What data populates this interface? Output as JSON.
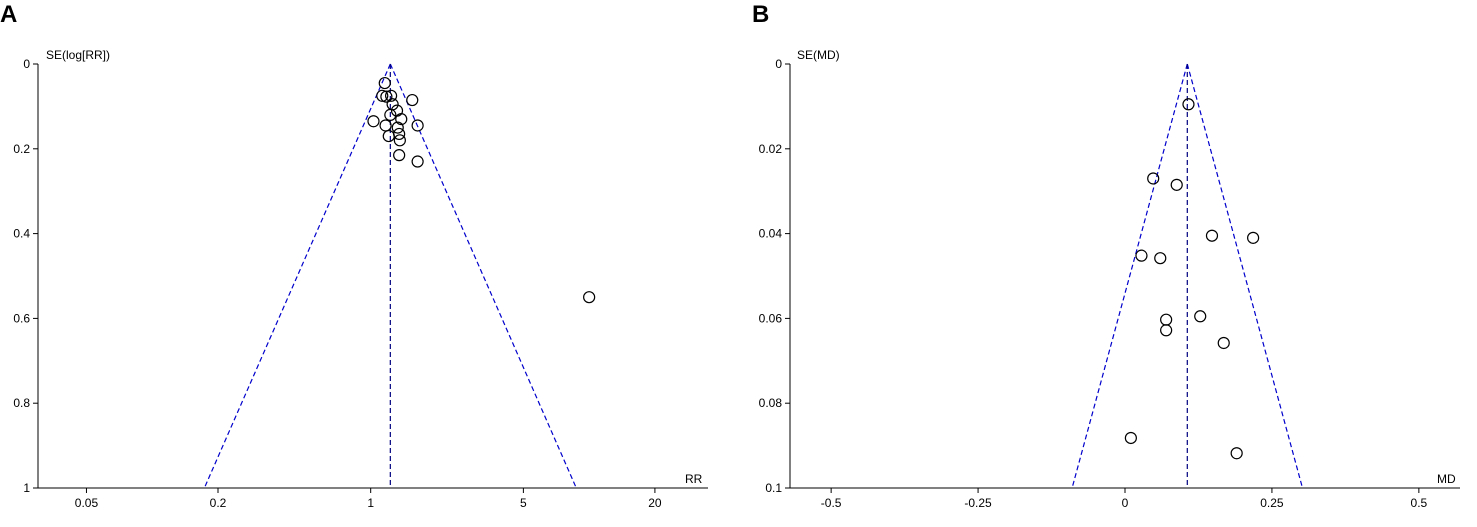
{
  "chart_data": [
    {
      "panel": "A",
      "type": "scatter",
      "ylabel": "SE(log[RR])",
      "xlabel": "RR",
      "x_scale": "log",
      "xlim": [
        0.03,
        35
      ],
      "ylim": [
        0,
        1
      ],
      "y_inverted": true,
      "xticks": [
        {
          "value": 0.05,
          "label": "0.05"
        },
        {
          "value": 0.2,
          "label": "0.2"
        },
        {
          "value": 1,
          "label": "1"
        },
        {
          "value": 5,
          "label": "5"
        },
        {
          "value": 20,
          "label": "20"
        }
      ],
      "yticks": [
        {
          "value": 0,
          "label": "0"
        },
        {
          "value": 0.2,
          "label": "0.2"
        },
        {
          "value": 0.4,
          "label": "0.4"
        },
        {
          "value": 0.6,
          "label": "0.6"
        },
        {
          "value": 0.8,
          "label": "0.8"
        },
        {
          "value": 1,
          "label": "1"
        }
      ],
      "pooled_estimate": 1.23,
      "funnel": "95% pseudo-confidence limits (dashed)",
      "points": [
        {
          "x": 1.16,
          "y": 0.045
        },
        {
          "x": 1.13,
          "y": 0.075
        },
        {
          "x": 1.18,
          "y": 0.077
        },
        {
          "x": 1.24,
          "y": 0.075
        },
        {
          "x": 1.55,
          "y": 0.085
        },
        {
          "x": 1.26,
          "y": 0.095
        },
        {
          "x": 1.32,
          "y": 0.11
        },
        {
          "x": 1.23,
          "y": 0.12
        },
        {
          "x": 1.38,
          "y": 0.13
        },
        {
          "x": 1.03,
          "y": 0.135
        },
        {
          "x": 1.17,
          "y": 0.145
        },
        {
          "x": 1.33,
          "y": 0.15
        },
        {
          "x": 1.64,
          "y": 0.145
        },
        {
          "x": 1.35,
          "y": 0.165
        },
        {
          "x": 1.21,
          "y": 0.17
        },
        {
          "x": 1.36,
          "y": 0.18
        },
        {
          "x": 1.35,
          "y": 0.215
        },
        {
          "x": 1.64,
          "y": 0.23
        },
        {
          "x": 10.0,
          "y": 0.55
        }
      ]
    },
    {
      "panel": "B",
      "type": "scatter",
      "ylabel": "SE(MD)",
      "xlabel": "MD",
      "x_scale": "linear",
      "xlim": [
        -0.57,
        0.57
      ],
      "ylim": [
        0,
        0.1
      ],
      "y_inverted": true,
      "xticks": [
        {
          "value": -0.5,
          "label": "-0.5"
        },
        {
          "value": -0.25,
          "label": "-0.25"
        },
        {
          "value": 0,
          "label": "0"
        },
        {
          "value": 0.25,
          "label": "0.25"
        },
        {
          "value": 0.5,
          "label": "0.5"
        }
      ],
      "yticks": [
        {
          "value": 0,
          "label": "0"
        },
        {
          "value": 0.02,
          "label": "0.02"
        },
        {
          "value": 0.04,
          "label": "0.04"
        },
        {
          "value": 0.06,
          "label": "0.06"
        },
        {
          "value": 0.08,
          "label": "0.08"
        },
        {
          "value": 0.1,
          "label": "0.1"
        }
      ],
      "pooled_estimate": 0.106,
      "funnel": "95% pseudo-confidence limits (dashed)",
      "points": [
        {
          "x": 0.108,
          "y": 0.0095
        },
        {
          "x": 0.048,
          "y": 0.027
        },
        {
          "x": 0.088,
          "y": 0.0285
        },
        {
          "x": 0.148,
          "y": 0.0405
        },
        {
          "x": 0.218,
          "y": 0.041
        },
        {
          "x": 0.028,
          "y": 0.0452
        },
        {
          "x": 0.06,
          "y": 0.0458
        },
        {
          "x": 0.128,
          "y": 0.0595
        },
        {
          "x": 0.07,
          "y": 0.0603
        },
        {
          "x": 0.07,
          "y": 0.0628
        },
        {
          "x": 0.168,
          "y": 0.0658
        },
        {
          "x": 0.01,
          "y": 0.0882
        },
        {
          "x": 0.19,
          "y": 0.0918
        }
      ]
    }
  ],
  "colors": {
    "axis": "#000000",
    "funnel": "#0000cc",
    "center_line": "#000080",
    "marker_stroke": "#000000"
  }
}
